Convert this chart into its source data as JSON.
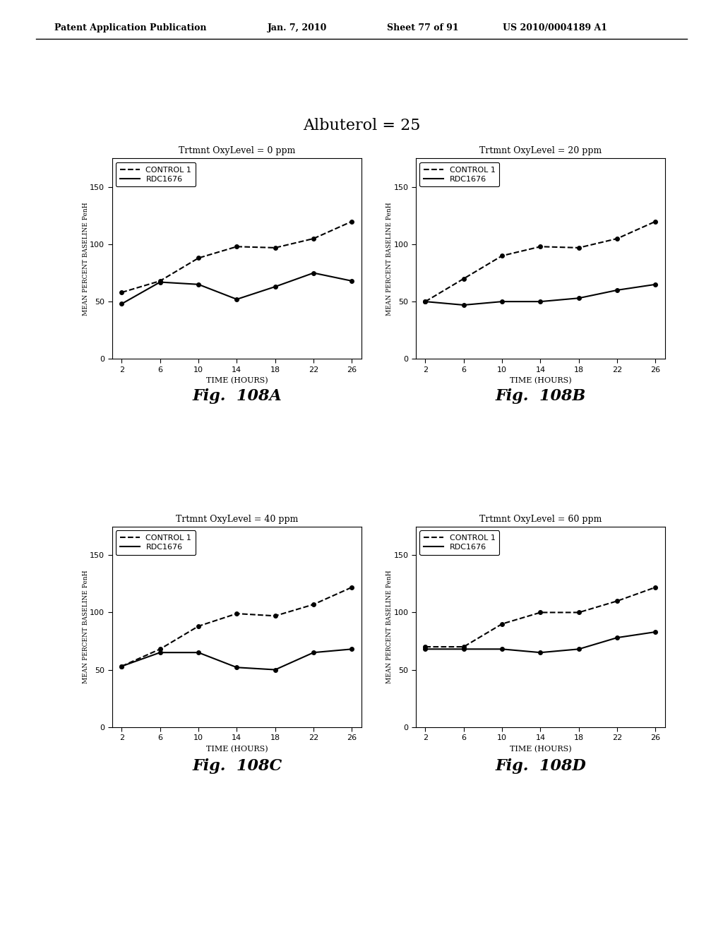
{
  "title": "Albuterol = 25",
  "title_fontsize": 16,
  "x_values": [
    2,
    6,
    10,
    14,
    18,
    22,
    26
  ],
  "subplots": [
    {
      "title": "Trtmnt OxyLevel = 0 ppm",
      "fig_label": "Fig.  108A",
      "control1_y": [
        58,
        68,
        88,
        98,
        97,
        105,
        120
      ],
      "rdc1676_y": [
        48,
        67,
        65,
        52,
        63,
        75,
        68
      ]
    },
    {
      "title": "Trtmnt OxyLevel = 20 ppm",
      "fig_label": "Fig.  108B",
      "control1_y": [
        50,
        70,
        90,
        98,
        97,
        105,
        120
      ],
      "rdc1676_y": [
        50,
        47,
        50,
        50,
        53,
        60,
        65
      ]
    },
    {
      "title": "Trtmnt OxyLevel = 40 ppm",
      "fig_label": "Fig.  108C",
      "control1_y": [
        53,
        68,
        88,
        99,
        97,
        107,
        122
      ],
      "rdc1676_y": [
        53,
        65,
        65,
        52,
        50,
        65,
        68
      ]
    },
    {
      "title": "Trtmnt OxyLevel = 60 ppm",
      "fig_label": "Fig.  108D",
      "control1_y": [
        70,
        70,
        90,
        100,
        100,
        110,
        122
      ],
      "rdc1676_y": [
        68,
        68,
        68,
        65,
        68,
        78,
        83
      ]
    }
  ],
  "ylabel": "MEAN PERCENT BASELINE PenH",
  "xlabel": "TIME (HOURS)",
  "ylim": [
    0,
    175
  ],
  "yticks": [
    0,
    50,
    100,
    150
  ],
  "xticks": [
    2,
    6,
    10,
    14,
    18,
    22,
    26
  ],
  "background_color": "#ffffff",
  "marker": "o",
  "marker_size": 4,
  "line_width": 1.5,
  "header_text_top": "Patent Application Publication",
  "header_text_date": "Jan. 7, 2010",
  "header_text_sheet": "Sheet 77 of 91",
  "header_text_patent": "US 2010/0004189 A1"
}
